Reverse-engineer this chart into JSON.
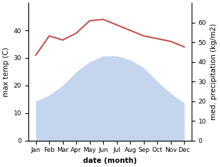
{
  "months": [
    "Jan",
    "Feb",
    "Mar",
    "Apr",
    "May",
    "Jun",
    "Jul",
    "Aug",
    "Sep",
    "Oct",
    "Nov",
    "Dec"
  ],
  "temp": [
    31,
    38,
    36.5,
    39,
    43.5,
    44,
    42,
    40,
    38,
    37,
    36,
    34
  ],
  "precip": [
    20,
    23,
    28,
    35,
    40,
    43,
    43,
    41,
    37,
    30,
    24,
    19
  ],
  "temp_color": "#c0504d",
  "precip_color": "#c5d5ee",
  "temp_ylim": [
    0,
    50
  ],
  "precip_ylim": [
    0,
    70
  ],
  "temp_yticks": [
    0,
    10,
    20,
    30,
    40
  ],
  "precip_yticks": [
    0,
    10,
    20,
    30,
    40,
    50,
    60
  ],
  "xlabel": "date (month)",
  "ylabel_left": "max temp (C)",
  "ylabel_right": "med. precipitation (kg/m2)",
  "label_fontsize": 7.5,
  "tick_fontsize": 6.5
}
